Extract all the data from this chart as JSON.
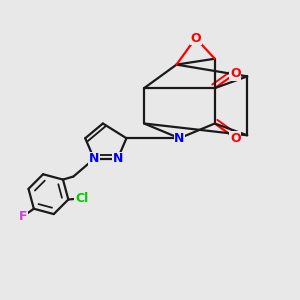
{
  "background_color": "#e8e8e8",
  "bond_color": "#1a1a1a",
  "bond_width": 1.6,
  "n_color": "#0000ff",
  "o_color": "#ff0000",
  "cl_color": "#00cc00",
  "f_color": "#cc44cc",
  "figsize": [
    3.0,
    3.0
  ],
  "dpi": 100,
  "xlim": [
    0,
    10
  ],
  "ylim": [
    0,
    10
  ]
}
